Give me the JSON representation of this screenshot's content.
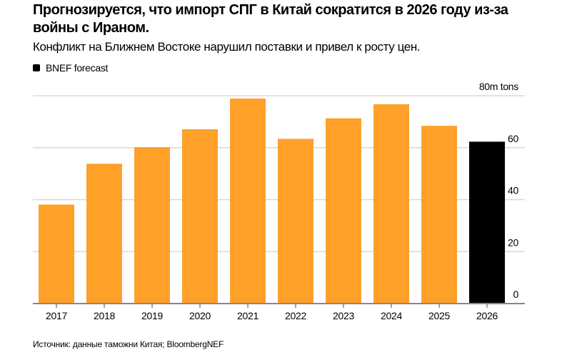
{
  "title": "Прогнозируется, что импорт СПГ в Китай сократится в 2026 году из-за войны с Ираном.",
  "subtitle": "Конфликт на Ближнем Востоке нарушил поставки и привел к росту цен.",
  "legend": {
    "label": "BNEF forecast",
    "color": "#000000"
  },
  "source": "Источник: данные таможни Китая; BloombergNEF",
  "chart_data": {
    "type": "bar",
    "title": "Прогнозируется, что импорт СПГ в Китай сократится в 2026 году из-за войны с Ираном.",
    "subtitle": "Конфликт на Ближнем Востоке нарушил поставки и привел к росту цен.",
    "categories": [
      "2017",
      "2018",
      "2019",
      "2020",
      "2021",
      "2022",
      "2023",
      "2024",
      "2025",
      "2026"
    ],
    "values": [
      38.1,
      53.8,
      60.2,
      67.1,
      78.9,
      63.4,
      71.3,
      76.7,
      68.4,
      62.3
    ],
    "forecast": [
      false,
      false,
      false,
      false,
      false,
      false,
      false,
      false,
      false,
      true
    ],
    "colors": {
      "actual": "#FFA028",
      "forecast": "#000000",
      "grid": "#d9d9d9",
      "axis": "#888888"
    },
    "ylim": [
      0,
      80
    ],
    "yticks": [
      0,
      20,
      40,
      60,
      80
    ],
    "ytick_labels": [
      "0",
      "20",
      "40",
      "60",
      "80m tons"
    ],
    "y_axis_position": "right",
    "grid": true,
    "legend_placement": "top-left"
  }
}
